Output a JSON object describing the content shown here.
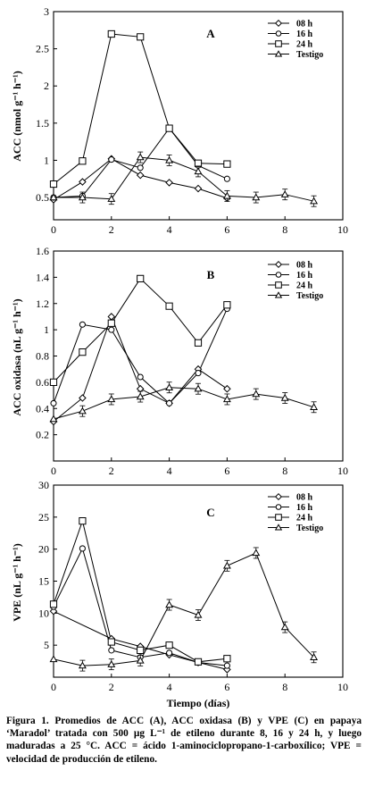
{
  "chart_data": [
    {
      "type": "line",
      "panel_label": "A",
      "ylabel": "ACC (nmol g⁻¹ h⁻¹)",
      "xlim": [
        0,
        10
      ],
      "ylim": [
        0.2,
        3
      ],
      "xticks": [
        "0",
        "2",
        "4",
        "6",
        "8",
        "10"
      ],
      "yticks": [
        "0.5",
        "1",
        "1.5",
        "2",
        "2.5",
        "3"
      ],
      "legend_position": "top-right",
      "series": [
        {
          "name": "08 h",
          "marker": "diamond",
          "x": [
            0,
            1,
            2,
            3,
            4,
            5,
            6
          ],
          "y": [
            0.47,
            0.71,
            1.02,
            0.8,
            0.7,
            0.62,
            0.49
          ]
        },
        {
          "name": "16 h",
          "marker": "circle",
          "x": [
            0,
            1,
            2,
            3,
            4,
            5,
            6
          ],
          "y": [
            0.5,
            0.52,
            1.01,
            0.9,
            1.43,
            0.93,
            0.75
          ]
        },
        {
          "name": "24 h",
          "marker": "square",
          "x": [
            0,
            1,
            2,
            3,
            4,
            5,
            6
          ],
          "y": [
            0.68,
            0.99,
            2.7,
            2.66,
            1.43,
            0.96,
            0.95
          ]
        },
        {
          "name": "Testigo",
          "marker": "triangle",
          "x": [
            0,
            1,
            2,
            3,
            4,
            5,
            6,
            7,
            8,
            9
          ],
          "y": [
            0.5,
            0.5,
            0.48,
            1.04,
            1.0,
            0.85,
            0.52,
            0.5,
            0.54,
            0.45
          ]
        }
      ]
    },
    {
      "type": "line",
      "panel_label": "B",
      "ylabel": "ACC oxidasa (nL g⁻¹ h⁻¹)",
      "xlim": [
        0,
        10
      ],
      "ylim": [
        0,
        1.6
      ],
      "xticks": [
        "0",
        "2",
        "4",
        "6",
        "8",
        "10"
      ],
      "yticks": [
        "0.2",
        "0.4",
        "0.6",
        "0.8",
        "1",
        "1.2",
        "1.4",
        "1.6"
      ],
      "legend_position": "top-right",
      "series": [
        {
          "name": "08 h",
          "marker": "diamond",
          "x": [
            0,
            1,
            2,
            3,
            4,
            5,
            6
          ],
          "y": [
            0.3,
            0.48,
            1.1,
            0.55,
            0.44,
            0.7,
            0.55
          ]
        },
        {
          "name": "16 h",
          "marker": "circle",
          "x": [
            0,
            1,
            2,
            3,
            4,
            5,
            6
          ],
          "y": [
            0.44,
            1.04,
            1.0,
            0.64,
            0.44,
            0.67,
            1.16
          ]
        },
        {
          "name": "24 h",
          "marker": "square",
          "x": [
            0,
            1,
            2,
            3,
            4,
            5,
            6
          ],
          "y": [
            0.6,
            0.83,
            1.05,
            1.39,
            1.18,
            0.9,
            1.19
          ]
        },
        {
          "name": "Testigo",
          "marker": "triangle",
          "x": [
            0,
            1,
            2,
            3,
            4,
            5,
            6,
            7,
            8,
            9
          ],
          "y": [
            0.32,
            0.38,
            0.47,
            0.49,
            0.56,
            0.55,
            0.47,
            0.51,
            0.48,
            0.41
          ]
        }
      ]
    },
    {
      "type": "line",
      "panel_label": "C",
      "ylabel": "VPE (nL g⁻¹ h⁻¹)",
      "xlabel": "Tiempo (días)",
      "xlim": [
        0,
        10
      ],
      "ylim": [
        0,
        30
      ],
      "xticks": [
        "0",
        "2",
        "4",
        "6",
        "8",
        "10"
      ],
      "yticks": [
        "5",
        "10",
        "15",
        "20",
        "25",
        "30"
      ],
      "legend_position": "top-right",
      "series": [
        {
          "name": "08 h",
          "marker": "diamond",
          "x": [
            0,
            2,
            3,
            4,
            5,
            6
          ],
          "y": [
            10.3,
            6.0,
            4.8,
            3.5,
            2.3,
            1.2
          ]
        },
        {
          "name": "16 h",
          "marker": "circle",
          "x": [
            0,
            1,
            2,
            3,
            4,
            5,
            6
          ],
          "y": [
            11.0,
            20.1,
            4.2,
            3.1,
            3.8,
            2.3,
            1.8
          ]
        },
        {
          "name": "24 h",
          "marker": "square",
          "x": [
            0,
            1,
            2,
            3,
            4,
            5,
            6
          ],
          "y": [
            11.4,
            24.4,
            5.5,
            4.2,
            5.0,
            2.4,
            2.9
          ]
        },
        {
          "name": "Testigo",
          "marker": "triangle",
          "x": [
            0,
            1,
            2,
            3,
            4,
            5,
            6,
            7,
            8,
            9
          ],
          "y": [
            2.8,
            1.8,
            2.0,
            2.6,
            11.3,
            9.7,
            17.4,
            19.4,
            7.8,
            3.1
          ]
        }
      ]
    }
  ],
  "caption": "Figura 1. Promedios de ACC (A), ACC oxidasa (B) y VPE (C) en papaya ‘Maradol’ tratada con 500 µg L⁻¹ de etileno durante 8, 16 y 24 h, y luego maduradas a 25 °C. ACC = ácido 1-aminociclopropano-1-carboxílico; VPE = velocidad de producción de etileno."
}
